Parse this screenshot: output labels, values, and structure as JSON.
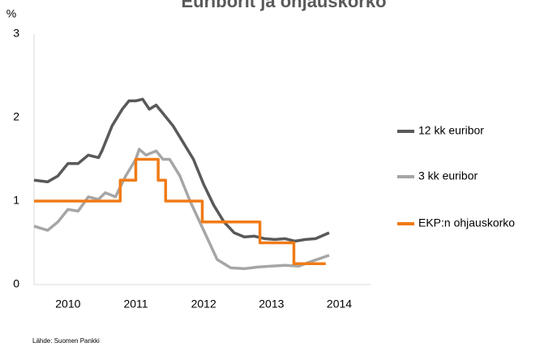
{
  "chart_data": {
    "type": "line",
    "title": "Euriborit ja ohjauskorko",
    "y_label": "%",
    "source": "Lähde: Suomen Pankki",
    "xlim": [
      2009.5,
      2014.46
    ],
    "xticks": [
      2010,
      2011,
      2012,
      2013,
      2014
    ],
    "ylim": [
      0,
      3
    ],
    "yticks": [
      0,
      1,
      2,
      3
    ],
    "legend": "right",
    "series": [
      {
        "name": "12 kk euribor",
        "color": "#595959",
        "x": [
          2009.5,
          2009.7,
          2009.85,
          2010.0,
          2010.15,
          2010.3,
          2010.45,
          2010.5,
          2010.65,
          2010.8,
          2010.9,
          2011.0,
          2011.1,
          2011.2,
          2011.3,
          2011.4,
          2011.55,
          2011.7,
          2011.85,
          2012.0,
          2012.15,
          2012.3,
          2012.45,
          2012.6,
          2012.75,
          2012.9,
          2013.05,
          2013.2,
          2013.35,
          2013.5,
          2013.65,
          2013.85
        ],
        "values": [
          1.25,
          1.23,
          1.3,
          1.45,
          1.45,
          1.55,
          1.52,
          1.6,
          1.9,
          2.1,
          2.2,
          2.2,
          2.22,
          2.1,
          2.15,
          2.05,
          1.9,
          1.7,
          1.5,
          1.2,
          0.95,
          0.75,
          0.62,
          0.57,
          0.58,
          0.55,
          0.54,
          0.55,
          0.52,
          0.54,
          0.55,
          0.62
        ]
      },
      {
        "name": "3 kk euribor",
        "color": "#a6a6a6",
        "x": [
          2009.5,
          2009.7,
          2009.85,
          2010.0,
          2010.15,
          2010.3,
          2010.45,
          2010.55,
          2010.7,
          2010.85,
          2011.0,
          2011.05,
          2011.15,
          2011.3,
          2011.4,
          2011.5,
          2011.65,
          2011.8,
          2012.0,
          2012.2,
          2012.4,
          2012.6,
          2012.8,
          2013.0,
          2013.2,
          2013.4,
          2013.6,
          2013.85
        ],
        "values": [
          0.7,
          0.65,
          0.75,
          0.9,
          0.88,
          1.05,
          1.02,
          1.1,
          1.05,
          1.3,
          1.5,
          1.62,
          1.55,
          1.6,
          1.5,
          1.5,
          1.3,
          1.0,
          0.65,
          0.3,
          0.2,
          0.19,
          0.21,
          0.22,
          0.23,
          0.22,
          0.28,
          0.35
        ]
      },
      {
        "name": "EKP:n ohjauskorko",
        "color": "#f07b16",
        "x": [
          2009.5,
          2010.77,
          2010.77,
          2011.0,
          2011.0,
          2011.33,
          2011.33,
          2011.44,
          2011.44,
          2011.98,
          2011.98,
          2012.83,
          2012.83,
          2013.33,
          2013.33,
          2013.8
        ],
        "values": [
          1,
          1,
          1.25,
          1.25,
          1.5,
          1.5,
          1.25,
          1.25,
          1,
          1,
          0.75,
          0.75,
          0.5,
          0.5,
          0.25,
          0.25
        ]
      }
    ]
  }
}
